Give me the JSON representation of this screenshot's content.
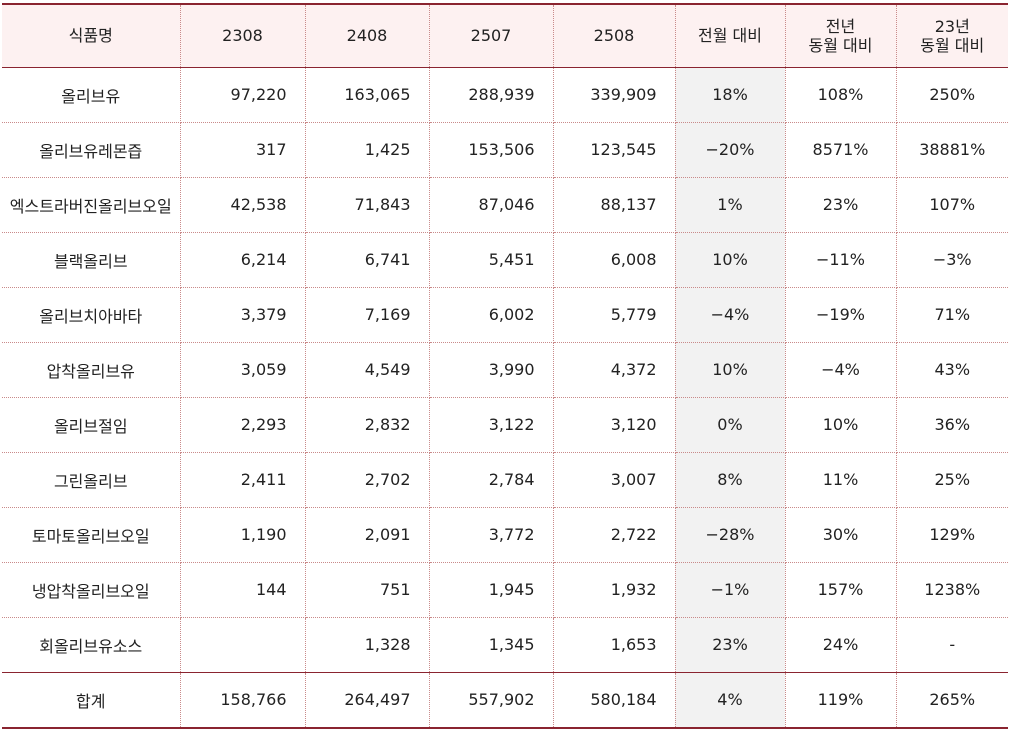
{
  "columns": [
    "식품명",
    "2308",
    "2408",
    "2507",
    "2508",
    "전월 대비",
    "전년\n동월 대비",
    "23년\n동월 대비"
  ],
  "rows": [
    {
      "name": "올리브유",
      "v2308": "97,220",
      "v2408": "163,065",
      "v2507": "288,939",
      "v2508": "339,909",
      "mom": "18%",
      "yoy": "108%",
      "vs23": "250%"
    },
    {
      "name": "올리브유레몬즙",
      "v2308": "317",
      "v2408": "1,425",
      "v2507": "153,506",
      "v2508": "123,545",
      "mom": "-20%",
      "yoy": "8571%",
      "vs23": "38881%"
    },
    {
      "name": "엑스트라버진올리브오일",
      "v2308": "42,538",
      "v2408": "71,843",
      "v2507": "87,046",
      "v2508": "88,137",
      "mom": "1%",
      "yoy": "23%",
      "vs23": "107%"
    },
    {
      "name": "블랙올리브",
      "v2308": "6,214",
      "v2408": "6,741",
      "v2507": "5,451",
      "v2508": "6,008",
      "mom": "10%",
      "yoy": "-11%",
      "vs23": "-3%"
    },
    {
      "name": "올리브치아바타",
      "v2308": "3,379",
      "v2408": "7,169",
      "v2507": "6,002",
      "v2508": "5,779",
      "mom": "-4%",
      "yoy": "-19%",
      "vs23": "71%"
    },
    {
      "name": "압착올리브유",
      "v2308": "3,059",
      "v2408": "4,549",
      "v2507": "3,990",
      "v2508": "4,372",
      "mom": "10%",
      "yoy": "-4%",
      "vs23": "43%"
    },
    {
      "name": "올리브절임",
      "v2308": "2,293",
      "v2408": "2,832",
      "v2507": "3,122",
      "v2508": "3,120",
      "mom": "0%",
      "yoy": "10%",
      "vs23": "36%"
    },
    {
      "name": "그린올리브",
      "v2308": "2,411",
      "v2408": "2,702",
      "v2507": "2,784",
      "v2508": "3,007",
      "mom": "8%",
      "yoy": "11%",
      "vs23": "25%"
    },
    {
      "name": "토마토올리브오일",
      "v2308": "1,190",
      "v2408": "2,091",
      "v2507": "3,772",
      "v2508": "2,722",
      "mom": "-28%",
      "yoy": "30%",
      "vs23": "129%"
    },
    {
      "name": "냉압착올리브오일",
      "v2308": "144",
      "v2408": "751",
      "v2507": "1,945",
      "v2508": "1,932",
      "mom": "-1%",
      "yoy": "157%",
      "vs23": "1238%"
    },
    {
      "name": "회올리브유소스",
      "v2308": "",
      "v2408": "1,328",
      "v2507": "1,345",
      "v2508": "1,653",
      "mom": "23%",
      "yoy": "24%",
      "vs23": "-"
    }
  ],
  "total": {
    "name": "합계",
    "v2308": "158,766",
    "v2408": "264,497",
    "v2507": "557,902",
    "v2508": "580,184",
    "mom": "4%",
    "yoy": "119%",
    "vs23": "265%"
  },
  "colors": {
    "accent": "#8a2430",
    "header_bg": "#fdf1f1",
    "highlight_col_bg": "#f2f2f2"
  }
}
